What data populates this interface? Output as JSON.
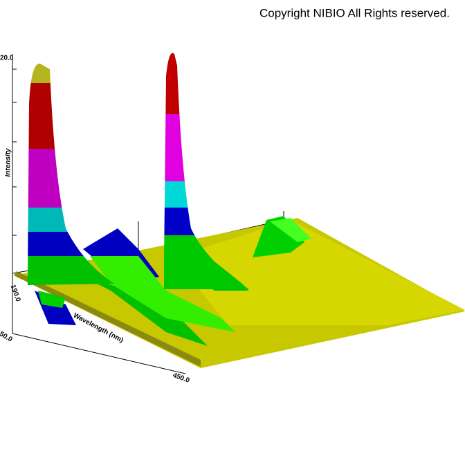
{
  "copyright": "Copyright NIBIO All Rights reserved.",
  "axes": {
    "z_label": "Intensity",
    "x_label": "Wavelength (nm)",
    "tick_labels": [
      "20.0",
      "190.0",
      "50.0",
      "450.0"
    ]
  }
}
